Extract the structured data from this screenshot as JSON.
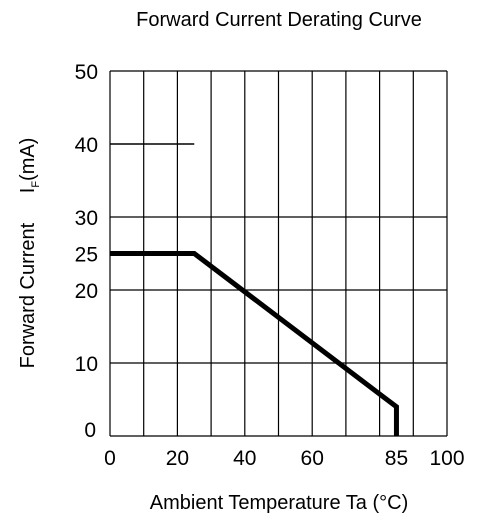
{
  "chart_data": {
    "type": "line",
    "title": "Forward Current Derating Curve",
    "xlabel": "Ambient Temperature Ta (°C)",
    "ylabel": {
      "prefix": "Forward Current",
      "symbol": "I",
      "subscript": "F",
      "unit": "(mA)"
    },
    "xlim": [
      0,
      100
    ],
    "ylim": [
      0,
      50
    ],
    "grid": true,
    "x_ticks": [
      {
        "value": 0,
        "label": "0"
      },
      {
        "value": 20,
        "label": "20"
      },
      {
        "value": 40,
        "label": "40"
      },
      {
        "value": 60,
        "label": "60"
      },
      {
        "value": 85,
        "label": "85"
      },
      {
        "value": 100,
        "label": "100"
      }
    ],
    "y_ticks": [
      {
        "value": 0,
        "label": "0"
      },
      {
        "value": 10,
        "label": "10"
      },
      {
        "value": 20,
        "label": "20"
      },
      {
        "value": 25,
        "label": "25"
      },
      {
        "value": 30,
        "label": "30"
      },
      {
        "value": 40,
        "label": "40"
      },
      {
        "value": 50,
        "label": "50"
      }
    ],
    "x_gridlines": [
      0,
      10,
      20,
      30,
      40,
      50,
      60,
      70,
      80,
      90,
      100
    ],
    "y_gridlines": [
      0,
      10,
      20,
      30,
      50
    ],
    "reference_line": {
      "x": [
        0,
        25
      ],
      "y": 40
    },
    "series": [
      {
        "x": [
          0,
          25,
          85,
          85
        ],
        "y": [
          25,
          25,
          4,
          0
        ]
      }
    ]
  }
}
